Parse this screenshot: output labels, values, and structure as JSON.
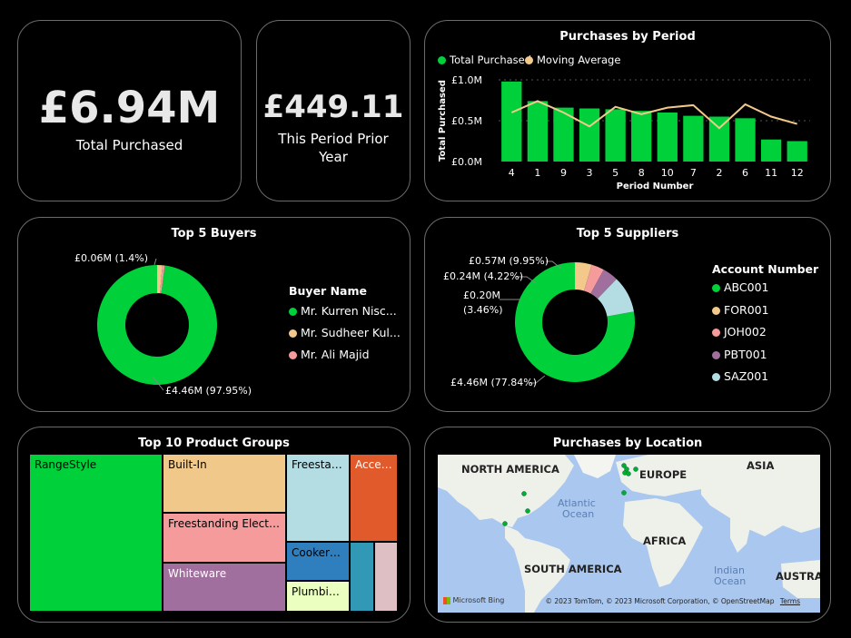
{
  "kpi1": {
    "value": "£6.94M",
    "label": "Total Purchased"
  },
  "kpi2": {
    "value": "£449.11",
    "label_line1": "This Period Prior",
    "label_line2": "Year"
  },
  "period_chart": {
    "title": "Purchases by Period",
    "legend": [
      {
        "label": "Total Purchased",
        "color": "#00d13a"
      },
      {
        "label": "Moving Average",
        "color": "#f2c98b"
      }
    ],
    "chart_data": {
      "type": "bar",
      "title": "Purchases by Period",
      "xlabel": "Period Number",
      "ylabel": "Total Purchased",
      "categories": [
        "4",
        "1",
        "9",
        "3",
        "5",
        "8",
        "10",
        "7",
        "2",
        "6",
        "11",
        "12"
      ],
      "series": [
        {
          "name": "Total Purchased",
          "type": "bar",
          "values": [
            0.98,
            0.74,
            0.66,
            0.65,
            0.64,
            0.62,
            0.6,
            0.56,
            0.55,
            0.53,
            0.27,
            0.25
          ]
        },
        {
          "name": "Moving Average",
          "type": "line",
          "values": [
            0.6,
            0.74,
            0.6,
            0.43,
            0.67,
            0.58,
            0.66,
            0.69,
            0.41,
            0.7,
            0.55,
            0.46
          ]
        }
      ],
      "ylim": [
        0,
        1.0
      ],
      "yticks": [
        "£0.0M",
        "£0.5M",
        "£1.0M"
      ]
    }
  },
  "buyers": {
    "title": "Top 5 Buyers",
    "legend_title": "Buyer Name",
    "legend": [
      {
        "label": "Mr. Kurren Nisc...",
        "color": "#00d13a"
      },
      {
        "label": "Mr. Sudheer Kul...",
        "color": "#f2c98b"
      },
      {
        "label": "Mr. Ali Majid",
        "color": "#f59b9b"
      }
    ],
    "labels": {
      "small": "£0.06M (1.4%)",
      "big": "£4.46M (97.95%)"
    },
    "chart_data": {
      "type": "pie",
      "title": "Top 5 Buyers",
      "categories": [
        "Mr. Kurren Nisc...",
        "Mr. Sudheer Kul...",
        "Mr. Ali Majid"
      ],
      "values": [
        97.95,
        1.4,
        0.65
      ],
      "colors": [
        "#00d13a",
        "#f2c98b",
        "#f59b9b"
      ]
    }
  },
  "suppliers": {
    "title": "Top 5 Suppliers",
    "legend_title": "Account Number",
    "legend": [
      {
        "label": "ABC001",
        "color": "#00d13a"
      },
      {
        "label": "FOR001",
        "color": "#f2c98b"
      },
      {
        "label": "JOH002",
        "color": "#f59b9b"
      },
      {
        "label": "PBT001",
        "color": "#a06f9d"
      },
      {
        "label": "SAZ001",
        "color": "#b4dce3"
      }
    ],
    "labels": {
      "saz": "£0.57M (9.95%)",
      "pbt": "£0.24M (4.22%)",
      "joh1": "£0.20M",
      "joh2": "(3.46%)",
      "abc": "£4.46M (77.84%)"
    },
    "chart_data": {
      "type": "pie",
      "title": "Top 5 Suppliers",
      "categories": [
        "ABC001",
        "FOR001",
        "JOH002",
        "PBT001",
        "SAZ001"
      ],
      "values": [
        77.84,
        4.53,
        3.46,
        4.22,
        9.95
      ],
      "colors": [
        "#00d13a",
        "#f2c98b",
        "#f59b9b",
        "#a06f9d",
        "#b4dce3"
      ]
    }
  },
  "products": {
    "title": "Top 10 Product Groups",
    "tiles": {
      "rangestyle": "RangeStyle",
      "builtin": "Built-In",
      "freestand_electric": "Freestanding Electric",
      "whiteware": "Whiteware",
      "freestan": "Freestan...",
      "acces": "Acces...",
      "cookers": "Cookers ...",
      "plumbin": "Plumbin..."
    }
  },
  "map": {
    "title": "Purchases by Location",
    "labels": {
      "north_america": "NORTH AMERICA",
      "europe": "EUROPE",
      "asia": "ASIA",
      "africa": "AFRICA",
      "south_america": "SOUTH AMERICA",
      "austral": "AUSTRAL"
    },
    "oceans": {
      "atlantic1": "Atlantic",
      "atlantic2": "Ocean",
      "indian1": "Indian",
      "indian2": "Ocean"
    },
    "attribution": "© 2023 TomTom, © 2023 Microsoft Corporation, © OpenStreetMap",
    "terms": "Terms",
    "bing": "Microsoft Bing"
  }
}
